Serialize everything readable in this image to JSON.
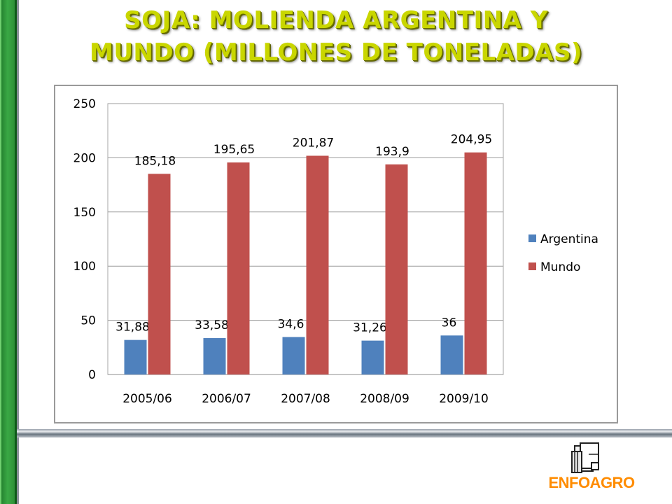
{
  "slide": {
    "title_line1": "SOJA: MOLIENDA ARGENTINA Y",
    "title_line2": "MUNDO (MILLONES DE TONELADAS)",
    "logo_text": "ENFOAGRO",
    "accent_green": "#2b8a33",
    "title_color": "#c9d600",
    "logo_color": "#ff8c00"
  },
  "chart_data": {
    "type": "bar",
    "title": "",
    "xlabel": "",
    "ylabel": "",
    "categories": [
      "2005/06",
      "2006/07",
      "2007/08",
      "2008/09",
      "2009/10"
    ],
    "series": [
      {
        "name": "Argentina",
        "color": "#4f81bd",
        "values": [
          31.88,
          33.58,
          34.6,
          31.26,
          36
        ],
        "labels": [
          "31,88",
          "33,58",
          "34,6",
          "31,26",
          "36"
        ]
      },
      {
        "name": "Mundo",
        "color": "#c0504d",
        "values": [
          185.18,
          195.65,
          201.87,
          193.9,
          204.95
        ],
        "labels": [
          "185,18",
          "195,65",
          "201,87",
          "193,9",
          "204,95"
        ]
      }
    ],
    "ylim": [
      0,
      250
    ],
    "yticks": [
      0,
      50,
      100,
      150,
      200,
      250
    ],
    "grid": true,
    "legend": "right"
  }
}
